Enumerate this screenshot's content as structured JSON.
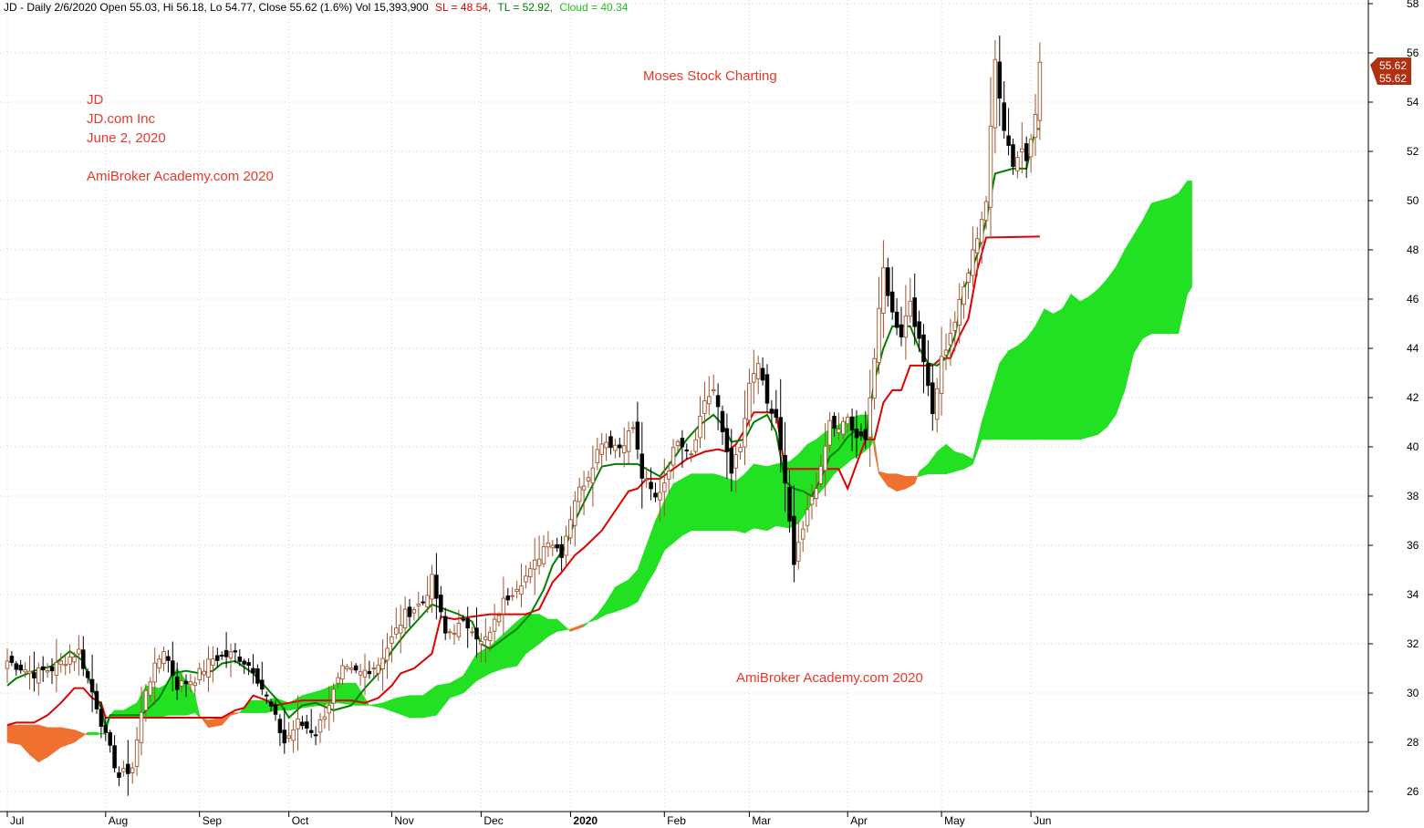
{
  "header": {
    "prefix": "JD - Daily 2/6/2020 Open 55.03, Hi 56.18, Lo 54.77, Close 55.62 (1.6%) Vol 15,393,900",
    "sl": "SL = 48.54,",
    "tl": "TL = 52.92,",
    "cloud": "Cloud = 40.34"
  },
  "annotations": {
    "symbol": "JD",
    "company": "JD.com Inc",
    "date": "June 2, 2020",
    "academy_top": "AmiBroker Academy.com 2020",
    "moses": "Moses Stock Charting",
    "academy_bottom": "AmiBroker Academy.com  2020"
  },
  "price_badges": [
    "55.62",
    "55.62"
  ],
  "colors": {
    "up_candle": "#a0522d",
    "down_candle": "#000000",
    "tl_line": "#008000",
    "sl_line": "#e00000",
    "cloud_bull": "#22e022",
    "cloud_bear": "#f07030",
    "text_red": "#e8382c",
    "badge": "#b03010"
  },
  "chart_data": {
    "type": "candlestick",
    "title": "JD - Daily",
    "ylim": [
      25,
      58
    ],
    "y_ticks": [
      26,
      28,
      30,
      32,
      34,
      36,
      38,
      40,
      42,
      44,
      46,
      48,
      50,
      52,
      54,
      56,
      58
    ],
    "x_ticks": [
      {
        "label": "Jul",
        "day": 0
      },
      {
        "label": "Aug",
        "day": 22
      },
      {
        "label": "Sep",
        "day": 43
      },
      {
        "label": "Oct",
        "day": 63
      },
      {
        "label": "Nov",
        "day": 86
      },
      {
        "label": "Dec",
        "day": 106
      },
      {
        "label": "2020",
        "day": 126
      },
      {
        "label": "Feb",
        "day": 147
      },
      {
        "label": "Mar",
        "day": 166
      },
      {
        "label": "Apr",
        "day": 188
      },
      {
        "label": "May",
        "day": 209
      },
      {
        "label": "Jun",
        "day": 229
      }
    ],
    "close_anchors": [
      [
        0,
        31.3
      ],
      [
        6,
        30.8
      ],
      [
        10,
        31.0
      ],
      [
        16,
        31.7
      ],
      [
        20,
        29.5
      ],
      [
        22,
        28.2
      ],
      [
        25,
        26.6
      ],
      [
        28,
        27.0
      ],
      [
        31,
        30.2
      ],
      [
        35,
        31.8
      ],
      [
        38,
        30.3
      ],
      [
        42,
        30.6
      ],
      [
        46,
        31.4
      ],
      [
        51,
        31.6
      ],
      [
        55,
        31.0
      ],
      [
        59,
        29.4
      ],
      [
        62,
        28.0
      ],
      [
        65,
        28.8
      ],
      [
        69,
        28.4
      ],
      [
        72,
        29.6
      ],
      [
        75,
        30.9
      ],
      [
        79,
        30.8
      ],
      [
        83,
        31.2
      ],
      [
        86,
        32.2
      ],
      [
        89,
        33.2
      ],
      [
        93,
        33.7
      ],
      [
        95,
        34.6
      ],
      [
        98,
        32.4
      ],
      [
        102,
        32.8
      ],
      [
        104,
        32.7
      ],
      [
        106,
        32.0
      ],
      [
        108,
        32.4
      ],
      [
        111,
        33.7
      ],
      [
        114,
        34.4
      ],
      [
        117,
        34.9
      ],
      [
        121,
        36.3
      ],
      [
        124,
        35.7
      ],
      [
        127,
        37.9
      ],
      [
        130,
        38.9
      ],
      [
        133,
        40.3
      ],
      [
        137,
        40.0
      ],
      [
        140,
        40.8
      ],
      [
        142,
        38.8
      ],
      [
        145,
        37.9
      ],
      [
        147,
        38.6
      ],
      [
        150,
        40.4
      ],
      [
        153,
        39.8
      ],
      [
        156,
        41.9
      ],
      [
        158,
        42.3
      ],
      [
        160,
        40.6
      ],
      [
        162,
        39.1
      ],
      [
        164,
        39.9
      ],
      [
        166,
        42.4
      ],
      [
        168,
        43.4
      ],
      [
        170,
        41.6
      ],
      [
        172,
        41.2
      ],
      [
        174,
        38.4
      ],
      [
        176,
        35.2
      ],
      [
        178,
        36.6
      ],
      [
        180,
        38.0
      ],
      [
        182,
        39.0
      ],
      [
        184,
        41.0
      ],
      [
        186,
        40.6
      ],
      [
        188,
        41.2
      ],
      [
        190,
        40.2
      ],
      [
        192,
        40.5
      ],
      [
        194,
        43.6
      ],
      [
        196,
        47.2
      ],
      [
        198,
        45.4
      ],
      [
        200,
        44.6
      ],
      [
        202,
        46.0
      ],
      [
        204,
        44.2
      ],
      [
        206,
        42.7
      ],
      [
        207,
        41.4
      ],
      [
        209,
        43.6
      ],
      [
        211,
        44.5
      ],
      [
        213,
        45.8
      ],
      [
        215,
        47.1
      ],
      [
        217,
        48.6
      ],
      [
        219,
        50.0
      ],
      [
        221,
        55.7
      ],
      [
        223,
        53.0
      ],
      [
        225,
        51.5
      ],
      [
        227,
        52.1
      ],
      [
        228,
        51.7
      ],
      [
        230,
        53.7
      ],
      [
        231,
        55.62
      ]
    ],
    "tl_line": [
      [
        0,
        30.3
      ],
      [
        2,
        30.6
      ],
      [
        6,
        30.9
      ],
      [
        10,
        31.1
      ],
      [
        14,
        31.7
      ],
      [
        17,
        31.3
      ],
      [
        19,
        30.2
      ],
      [
        21,
        29.4
      ],
      [
        22,
        28.6
      ],
      [
        23,
        29.1
      ],
      [
        30,
        29.1
      ],
      [
        34,
        29.8
      ],
      [
        37,
        30.8
      ],
      [
        40,
        30.9
      ],
      [
        43,
        30.8
      ],
      [
        46,
        30.9
      ],
      [
        48,
        31.2
      ],
      [
        51,
        31.3
      ],
      [
        55,
        30.8
      ],
      [
        58,
        30.2
      ],
      [
        61,
        29.6
      ],
      [
        63,
        29.0
      ],
      [
        66,
        29.5
      ],
      [
        69,
        29.6
      ],
      [
        73,
        29.3
      ],
      [
        77,
        29.5
      ],
      [
        80,
        30.2
      ],
      [
        83,
        30.8
      ],
      [
        86,
        31.7
      ],
      [
        89,
        32.4
      ],
      [
        92,
        33.0
      ],
      [
        95,
        33.6
      ],
      [
        101,
        33.2
      ],
      [
        104,
        32.9
      ],
      [
        106,
        32.0
      ],
      [
        108,
        31.8
      ],
      [
        111,
        32.2
      ],
      [
        114,
        32.6
      ],
      [
        117,
        33.2
      ],
      [
        120,
        34.2
      ],
      [
        122,
        35.2
      ],
      [
        125,
        36.0
      ],
      [
        127,
        37.0
      ],
      [
        130,
        38.1
      ],
      [
        133,
        39.2
      ],
      [
        136,
        39.3
      ],
      [
        141,
        39.3
      ],
      [
        144,
        39.0
      ],
      [
        146,
        38.8
      ],
      [
        149,
        39.5
      ],
      [
        152,
        40.3
      ],
      [
        155,
        40.9
      ],
      [
        158,
        41.3
      ],
      [
        160,
        40.9
      ],
      [
        162,
        40.2
      ],
      [
        165,
        40.3
      ],
      [
        167,
        41.0
      ],
      [
        170,
        41.3
      ],
      [
        172,
        40.6
      ],
      [
        174,
        38.6
      ],
      [
        176,
        38.3
      ],
      [
        178,
        38.2
      ],
      [
        180,
        38.0
      ],
      [
        182,
        38.7
      ],
      [
        184,
        39.6
      ],
      [
        186,
        39.9
      ],
      [
        188,
        40.4
      ],
      [
        190,
        40.7
      ],
      [
        192,
        40.3
      ],
      [
        194,
        42.7
      ],
      [
        196,
        44.0
      ],
      [
        198,
        44.9
      ],
      [
        200,
        44.9
      ],
      [
        202,
        44.9
      ],
      [
        204,
        44.0
      ],
      [
        206,
        43.4
      ],
      [
        208,
        43.3
      ],
      [
        210,
        43.6
      ],
      [
        212,
        44.5
      ],
      [
        214,
        46.4
      ],
      [
        217,
        47.8
      ],
      [
        219,
        49.2
      ],
      [
        221,
        51.1
      ],
      [
        225,
        51.3
      ],
      [
        228,
        51.3
      ],
      [
        230,
        52.9
      ],
      [
        231,
        52.92
      ]
    ],
    "sl_line": [
      [
        0,
        28.7
      ],
      [
        2,
        28.8
      ],
      [
        6,
        28.8
      ],
      [
        9,
        29.1
      ],
      [
        12,
        29.6
      ],
      [
        15,
        30.2
      ],
      [
        17,
        30.2
      ],
      [
        19,
        29.8
      ],
      [
        21,
        29.6
      ],
      [
        22,
        29.0
      ],
      [
        26,
        29.0
      ],
      [
        34,
        29.0
      ],
      [
        38,
        29.0
      ],
      [
        42,
        29.0
      ],
      [
        48,
        29.0
      ],
      [
        51,
        29.3
      ],
      [
        53,
        29.4
      ],
      [
        55,
        29.9
      ],
      [
        58,
        29.7
      ],
      [
        60,
        29.5
      ],
      [
        63,
        29.6
      ],
      [
        66,
        29.7
      ],
      [
        69,
        29.7
      ],
      [
        73,
        29.7
      ],
      [
        77,
        29.7
      ],
      [
        80,
        29.6
      ],
      [
        83,
        29.8
      ],
      [
        86,
        30.3
      ],
      [
        88,
        30.8
      ],
      [
        91,
        31.0
      ],
      [
        95,
        31.6
      ],
      [
        97,
        33.1
      ],
      [
        100,
        33.0
      ],
      [
        104,
        33.1
      ],
      [
        108,
        33.2
      ],
      [
        112,
        33.2
      ],
      [
        116,
        33.2
      ],
      [
        119,
        33.4
      ],
      [
        122,
        34.5
      ],
      [
        124,
        34.9
      ],
      [
        127,
        35.6
      ],
      [
        129,
        35.9
      ],
      [
        133,
        36.6
      ],
      [
        136,
        37.4
      ],
      [
        139,
        38.2
      ],
      [
        141,
        38.3
      ],
      [
        143,
        38.7
      ],
      [
        146,
        38.7
      ],
      [
        149,
        39.1
      ],
      [
        152,
        39.5
      ],
      [
        156,
        39.8
      ],
      [
        159,
        39.9
      ],
      [
        161,
        39.8
      ],
      [
        163,
        40.1
      ],
      [
        165,
        40.7
      ],
      [
        167,
        41.4
      ],
      [
        172,
        41.4
      ],
      [
        174,
        39.1
      ],
      [
        180,
        39.1
      ],
      [
        184,
        39.1
      ],
      [
        186,
        39.1
      ],
      [
        188,
        38.3
      ],
      [
        190,
        39.3
      ],
      [
        192,
        40.3
      ],
      [
        194,
        40.3
      ],
      [
        196,
        41.8
      ],
      [
        198,
        42.3
      ],
      [
        200,
        42.3
      ],
      [
        202,
        43.3
      ],
      [
        204,
        43.3
      ],
      [
        207,
        43.3
      ],
      [
        209,
        43.6
      ],
      [
        211,
        43.6
      ],
      [
        213,
        44.5
      ],
      [
        215,
        45.2
      ],
      [
        217,
        47.2
      ],
      [
        219,
        48.5
      ],
      [
        231,
        48.54
      ]
    ],
    "cloud_bands": [
      [
        0,
        28.7,
        28.0
      ],
      [
        3,
        28.7,
        27.9
      ],
      [
        5,
        28.7,
        27.5
      ],
      [
        7,
        28.7,
        27.2
      ],
      [
        9,
        28.6,
        27.4
      ],
      [
        12,
        28.6,
        27.8
      ],
      [
        15,
        28.5,
        28.0
      ],
      [
        18,
        28.3,
        28.4
      ],
      [
        20,
        28.3,
        28.4
      ],
      [
        22,
        28.4,
        28.3
      ],
      [
        23,
        29.0,
        29.1
      ],
      [
        24,
        29.0,
        29.3
      ],
      [
        26,
        29.0,
        29.3
      ],
      [
        29,
        29.0,
        29.6
      ],
      [
        31,
        29.0,
        30.3
      ],
      [
        34,
        29.0,
        30.2
      ],
      [
        36,
        29.1,
        30.4
      ],
      [
        38,
        29.1,
        31.0
      ],
      [
        40,
        29.1,
        30.5
      ],
      [
        42,
        29.2,
        29.9
      ],
      [
        43,
        29.0,
        29.1
      ],
      [
        45,
        28.9,
        28.6
      ],
      [
        48,
        29.0,
        28.7
      ],
      [
        50,
        29.2,
        29.1
      ],
      [
        52,
        29.2,
        29.2
      ],
      [
        54,
        29.2,
        29.7
      ],
      [
        58,
        29.2,
        29.7
      ],
      [
        60,
        29.3,
        29.8
      ],
      [
        63,
        29.3,
        29.6
      ],
      [
        66,
        29.4,
        29.9
      ],
      [
        70,
        29.5,
        30.1
      ],
      [
        74,
        29.6,
        30.4
      ],
      [
        78,
        29.5,
        30.4
      ],
      [
        81,
        29.5,
        29.5
      ],
      [
        84,
        29.4,
        29.6
      ],
      [
        87,
        29.2,
        29.8
      ],
      [
        90,
        29.0,
        29.9
      ],
      [
        93,
        29.0,
        29.9
      ],
      [
        96,
        29.1,
        30.3
      ],
      [
        99,
        29.8,
        30.4
      ],
      [
        102,
        30.0,
        30.7
      ],
      [
        105,
        30.5,
        31.6
      ],
      [
        108,
        30.8,
        31.9
      ],
      [
        111,
        31.0,
        32.4
      ],
      [
        114,
        31.1,
        32.9
      ],
      [
        116,
        31.6,
        33.2
      ],
      [
        119,
        32.0,
        33.2
      ],
      [
        121,
        32.3,
        33.0
      ],
      [
        123,
        32.5,
        33.0
      ],
      [
        126,
        32.6,
        32.5
      ],
      [
        129,
        32.8,
        32.7
      ],
      [
        132,
        33.0,
        33.2
      ],
      [
        134,
        33.2,
        33.7
      ],
      [
        136,
        33.3,
        34.3
      ],
      [
        139,
        33.5,
        34.6
      ],
      [
        141,
        33.7,
        35.0
      ],
      [
        143,
        34.4,
        36.0
      ],
      [
        145,
        35.0,
        37.0
      ],
      [
        147,
        35.8,
        37.8
      ],
      [
        149,
        36.1,
        38.5
      ],
      [
        151,
        36.4,
        38.7
      ],
      [
        153,
        36.6,
        38.9
      ],
      [
        155,
        36.6,
        38.9
      ],
      [
        158,
        36.6,
        38.9
      ],
      [
        160,
        36.6,
        38.8
      ],
      [
        163,
        36.6,
        38.6
      ],
      [
        165,
        36.5,
        38.9
      ],
      [
        167,
        36.7,
        39.3
      ],
      [
        170,
        36.6,
        39.2
      ],
      [
        172,
        36.8,
        39.3
      ],
      [
        175,
        36.7,
        39.4
      ],
      [
        177,
        36.9,
        39.7
      ],
      [
        179,
        37.4,
        40.1
      ],
      [
        181,
        38.0,
        40.3
      ],
      [
        183,
        38.4,
        40.6
      ],
      [
        185,
        38.9,
        40.8
      ],
      [
        187,
        39.2,
        41.0
      ],
      [
        189,
        39.5,
        41.2
      ],
      [
        191,
        39.7,
        41.3
      ],
      [
        193,
        40.0,
        41.3
      ],
      [
        194,
        40.3,
        39.8
      ],
      [
        195,
        39.0,
        38.9
      ],
      [
        197,
        38.9,
        38.4
      ],
      [
        199,
        38.9,
        38.2
      ],
      [
        201,
        38.8,
        38.3
      ],
      [
        203,
        38.8,
        38.5
      ],
      [
        204,
        38.8,
        39.0
      ],
      [
        206,
        38.9,
        39.3
      ],
      [
        208,
        38.9,
        39.8
      ],
      [
        210,
        38.9,
        40.1
      ],
      [
        212,
        39.0,
        39.8
      ],
      [
        214,
        39.1,
        39.7
      ],
      [
        216,
        39.3,
        39.5
      ],
      [
        218,
        40.3,
        41.0
      ],
      [
        220,
        40.3,
        42.2
      ],
      [
        222,
        40.3,
        43.4
      ],
      [
        224,
        40.3,
        43.9
      ],
      [
        226,
        40.3,
        44.1
      ],
      [
        228,
        40.3,
        44.4
      ],
      [
        230,
        40.3,
        44.9
      ],
      [
        232,
        40.3,
        45.6
      ],
      [
        234,
        40.3,
        45.4
      ],
      [
        236,
        40.3,
        45.6
      ],
      [
        238,
        40.3,
        46.2
      ],
      [
        240,
        40.3,
        45.9
      ],
      [
        242,
        40.4,
        46.1
      ],
      [
        244,
        40.5,
        46.4
      ],
      [
        246,
        40.8,
        46.8
      ],
      [
        248,
        41.3,
        47.3
      ],
      [
        250,
        42.3,
        48.0
      ],
      [
        252,
        43.8,
        48.6
      ],
      [
        254,
        44.4,
        49.2
      ],
      [
        256,
        44.6,
        49.9
      ],
      [
        258,
        44.6,
        50.0
      ],
      [
        260,
        44.6,
        50.1
      ],
      [
        262,
        44.6,
        50.3
      ],
      [
        264,
        46.2,
        50.8
      ],
      [
        265,
        46.5,
        50.8
      ]
    ]
  }
}
